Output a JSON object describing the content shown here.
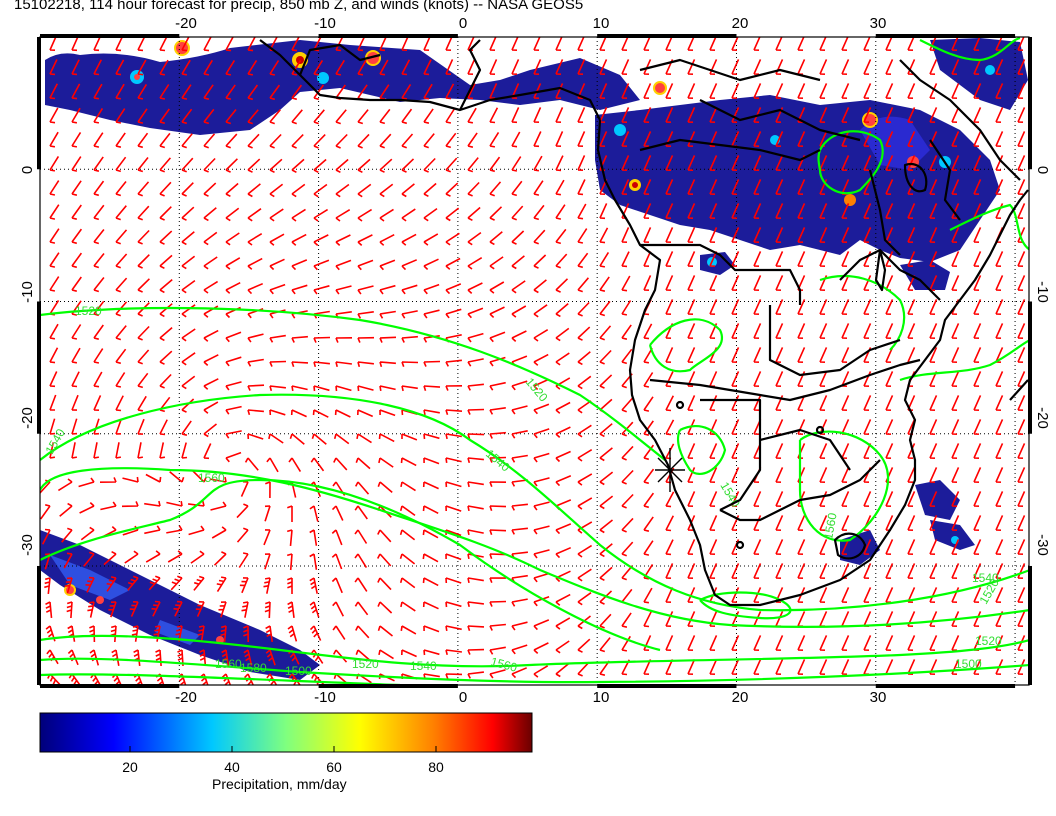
{
  "title": "15102218, 114 hour forecast for precip, 850 mb Z, and winds (knots) -- NASA GEOS5",
  "map": {
    "lon_range": [
      -30,
      41
    ],
    "lat_range": [
      -39,
      10
    ],
    "x_ticks": [
      "-20",
      "-10",
      "0",
      "10",
      "20",
      "30"
    ],
    "y_ticks": [
      "0",
      "-10",
      "-20",
      "-30"
    ],
    "grid": "dotted",
    "colors": {
      "wind_barbs": "#ff0000",
      "contours": "#00ff00",
      "coastline": "#000000"
    }
  },
  "contour_labels": [
    "1520",
    "1520",
    "1540",
    "1540",
    "1560",
    "1560",
    "1540",
    "1520",
    "1500",
    "1580",
    "1560",
    "1540",
    "1520",
    "1500",
    "1540",
    "1520",
    "1560"
  ],
  "colorbar": {
    "label": "Precipitation, mm/day",
    "ticks": [
      "20",
      "40",
      "60",
      "80"
    ],
    "range": [
      0,
      100
    ],
    "colors": [
      "#00007a",
      "#0000ff",
      "#00c8ff",
      "#7fff7f",
      "#ffff00",
      "#ff8000",
      "#ff0000",
      "#6a0000"
    ]
  }
}
